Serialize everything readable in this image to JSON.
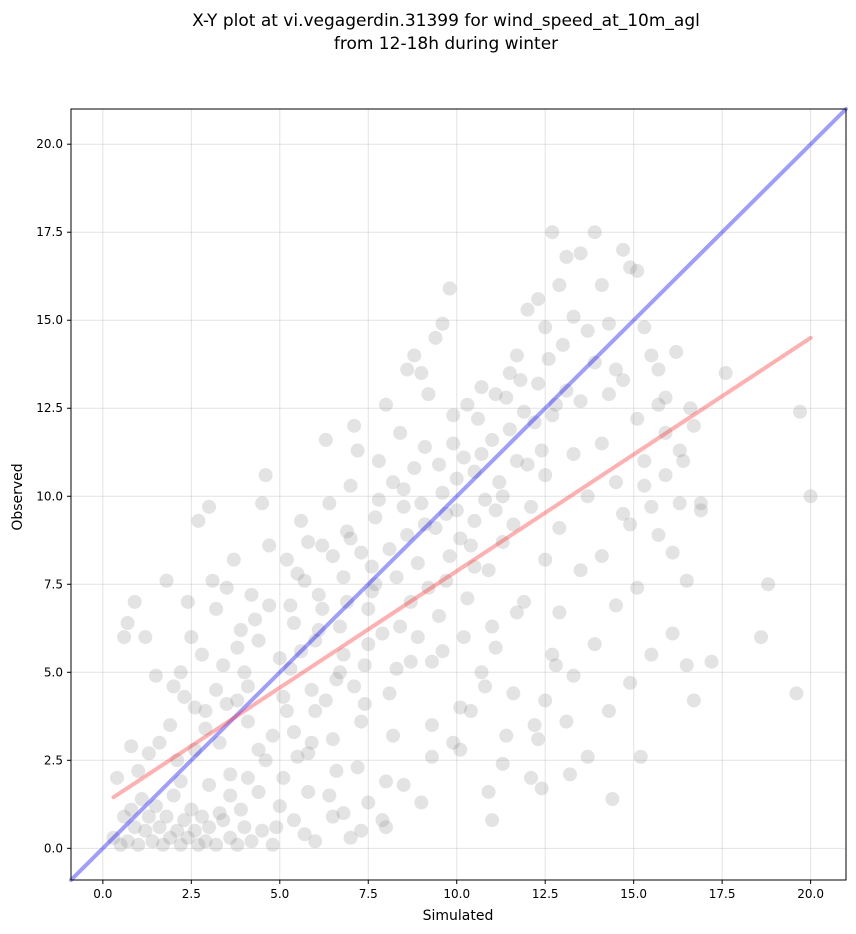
{
  "chart_data": {
    "type": "scatter",
    "title_lines": [
      "X-Y plot at vi.vegagerdin.31399 for wind_speed_at_10m_agl",
      "from 12-18h during winter"
    ],
    "xlabel": "Simulated",
    "ylabel": "Observed",
    "xlim": [
      -0.9,
      21.0
    ],
    "ylim": [
      -0.9,
      21.0
    ],
    "x_ticks": [
      0.0,
      2.5,
      5.0,
      7.5,
      10.0,
      12.5,
      15.0,
      17.5,
      20.0
    ],
    "x_tick_labels": [
      "0.0",
      "2.5",
      "5.0",
      "7.5",
      "10.0",
      "12.5",
      "15.0",
      "17.5",
      "20.0"
    ],
    "y_ticks": [
      0.0,
      2.5,
      5.0,
      7.5,
      10.0,
      12.5,
      15.0,
      17.5,
      20.0
    ],
    "y_tick_labels": [
      "0.0",
      "2.5",
      "5.0",
      "7.5",
      "10.0",
      "12.5",
      "15.0",
      "17.5",
      "20.0"
    ],
    "grid": true,
    "point_color": "#808080",
    "lines": [
      {
        "kind": "identity",
        "color": "#0000ff",
        "x": [
          -0.9,
          21.0
        ],
        "y": [
          -0.9,
          21.0
        ]
      },
      {
        "kind": "regression",
        "color": "#ff3333",
        "x": [
          0.3,
          20.0
        ],
        "y": [
          1.45,
          14.5
        ]
      }
    ],
    "points": [
      [
        0.3,
        0.3
      ],
      [
        0.5,
        0.1
      ],
      [
        0.6,
        0.9
      ],
      [
        0.7,
        0.2
      ],
      [
        0.8,
        1.1
      ],
      [
        0.9,
        0.6
      ],
      [
        1.0,
        0.1
      ],
      [
        1.1,
        1.4
      ],
      [
        1.2,
        0.5
      ],
      [
        1.3,
        0.9
      ],
      [
        1.4,
        0.2
      ],
      [
        1.5,
        1.2
      ],
      [
        1.6,
        0.6
      ],
      [
        1.7,
        0.1
      ],
      [
        1.8,
        0.9
      ],
      [
        1.9,
        0.3
      ],
      [
        2.0,
        1.5
      ],
      [
        2.1,
        0.5
      ],
      [
        2.2,
        0.1
      ],
      [
        2.3,
        0.8
      ],
      [
        2.4,
        0.3
      ],
      [
        2.5,
        1.1
      ],
      [
        2.6,
        0.5
      ],
      [
        2.7,
        0.1
      ],
      [
        2.8,
        0.9
      ],
      [
        2.9,
        0.2
      ],
      [
        3.0,
        0.6
      ],
      [
        3.2,
        0.1
      ],
      [
        3.4,
        0.8
      ],
      [
        3.6,
        0.3
      ],
      [
        3.8,
        0.1
      ],
      [
        4.0,
        0.6
      ],
      [
        4.2,
        0.2
      ],
      [
        4.5,
        0.5
      ],
      [
        4.8,
        0.1
      ],
      [
        0.4,
        2.0
      ],
      [
        0.6,
        6.0
      ],
      [
        0.7,
        6.4
      ],
      [
        0.8,
        2.9
      ],
      [
        0.9,
        7.0
      ],
      [
        1.0,
        2.2
      ],
      [
        1.2,
        6.0
      ],
      [
        1.3,
        2.7
      ],
      [
        1.5,
        4.9
      ],
      [
        1.6,
        3.0
      ],
      [
        1.8,
        7.6
      ],
      [
        1.9,
        3.5
      ],
      [
        2.0,
        4.6
      ],
      [
        2.1,
        2.5
      ],
      [
        2.2,
        5.0
      ],
      [
        2.3,
        4.3
      ],
      [
        2.4,
        7.0
      ],
      [
        2.5,
        6.0
      ],
      [
        2.6,
        4.0
      ],
      [
        2.7,
        9.3
      ],
      [
        2.8,
        5.5
      ],
      [
        2.9,
        3.4
      ],
      [
        3.0,
        9.7
      ],
      [
        3.1,
        7.6
      ],
      [
        3.2,
        6.8
      ],
      [
        3.3,
        3.0
      ],
      [
        3.4,
        5.2
      ],
      [
        3.5,
        7.4
      ],
      [
        3.6,
        2.1
      ],
      [
        3.7,
        8.2
      ],
      [
        3.8,
        4.2
      ],
      [
        3.9,
        6.2
      ],
      [
        4.0,
        5.0
      ],
      [
        4.1,
        3.6
      ],
      [
        4.2,
        7.2
      ],
      [
        4.3,
        6.5
      ],
      [
        4.4,
        2.8
      ],
      [
        4.5,
        9.8
      ],
      [
        4.6,
        10.6
      ],
      [
        4.7,
        8.6
      ],
      [
        3.0,
        1.8
      ],
      [
        3.3,
        1.0
      ],
      [
        3.6,
        1.5
      ],
      [
        3.9,
        1.1
      ],
      [
        4.1,
        2.0
      ],
      [
        4.4,
        1.6
      ],
      [
        4.6,
        2.5
      ],
      [
        4.8,
        3.2
      ],
      [
        4.9,
        0.6
      ],
      [
        5.0,
        1.2
      ],
      [
        5.1,
        2.0
      ],
      [
        5.2,
        3.9
      ],
      [
        5.3,
        5.1
      ],
      [
        5.4,
        6.4
      ],
      [
        5.5,
        7.8
      ],
      [
        5.6,
        9.3
      ],
      [
        5.7,
        0.4
      ],
      [
        5.8,
        2.7
      ],
      [
        5.9,
        4.5
      ],
      [
        6.0,
        5.9
      ],
      [
        6.1,
        7.2
      ],
      [
        6.2,
        8.6
      ],
      [
        6.3,
        11.6
      ],
      [
        6.4,
        1.5
      ],
      [
        6.5,
        3.1
      ],
      [
        6.6,
        4.8
      ],
      [
        6.7,
        6.3
      ],
      [
        6.8,
        7.7
      ],
      [
        6.9,
        9.0
      ],
      [
        7.0,
        10.3
      ],
      [
        7.1,
        12.0
      ],
      [
        7.2,
        2.3
      ],
      [
        7.3,
        3.6
      ],
      [
        7.4,
        5.2
      ],
      [
        7.5,
        6.8
      ],
      [
        7.6,
        8.0
      ],
      [
        7.7,
        9.4
      ],
      [
        7.8,
        11.0
      ],
      [
        7.9,
        0.8
      ],
      [
        5.2,
        8.2
      ],
      [
        5.4,
        3.3
      ],
      [
        5.6,
        5.6
      ],
      [
        5.8,
        8.7
      ],
      [
        6.0,
        3.9
      ],
      [
        6.2,
        6.8
      ],
      [
        6.4,
        9.8
      ],
      [
        6.6,
        2.2
      ],
      [
        6.8,
        5.5
      ],
      [
        7.0,
        8.8
      ],
      [
        7.2,
        11.3
      ],
      [
        7.4,
        4.1
      ],
      [
        7.6,
        7.3
      ],
      [
        7.8,
        9.9
      ],
      [
        8.0,
        12.6
      ],
      [
        8.2,
        3.2
      ],
      [
        8.4,
        6.3
      ],
      [
        8.6,
        8.9
      ],
      [
        8.8,
        10.8
      ],
      [
        9.0,
        13.5
      ],
      [
        8.0,
        1.9
      ],
      [
        8.1,
        4.4
      ],
      [
        8.3,
        7.7
      ],
      [
        8.5,
        10.2
      ],
      [
        8.7,
        5.3
      ],
      [
        8.9,
        8.1
      ],
      [
        9.1,
        11.4
      ],
      [
        9.3,
        2.6
      ],
      [
        9.5,
        6.6
      ],
      [
        9.7,
        9.5
      ],
      [
        9.9,
        12.3
      ],
      [
        10.1,
        4.0
      ],
      [
        10.3,
        7.1
      ],
      [
        10.5,
        10.7
      ],
      [
        10.7,
        13.1
      ],
      [
        10.9,
        1.6
      ],
      [
        11.1,
        5.7
      ],
      [
        11.3,
        8.7
      ],
      [
        11.5,
        11.9
      ],
      [
        11.7,
        14.0
      ],
      [
        9.2,
        7.4
      ],
      [
        9.4,
        9.1
      ],
      [
        9.6,
        10.1
      ],
      [
        9.8,
        8.3
      ],
      [
        10.0,
        9.6
      ],
      [
        10.2,
        11.1
      ],
      [
        10.4,
        8.6
      ],
      [
        10.6,
        12.2
      ],
      [
        10.8,
        9.9
      ],
      [
        11.0,
        11.6
      ],
      [
        11.2,
        10.4
      ],
      [
        11.4,
        12.8
      ],
      [
        11.6,
        9.2
      ],
      [
        11.8,
        13.3
      ],
      [
        12.0,
        10.9
      ],
      [
        12.2,
        12.1
      ],
      [
        12.4,
        11.3
      ],
      [
        12.6,
        13.9
      ],
      [
        12.8,
        12.6
      ],
      [
        13.0,
        14.3
      ],
      [
        8.2,
        10.4
      ],
      [
        8.4,
        11.8
      ],
      [
        8.6,
        13.6
      ],
      [
        8.8,
        14.0
      ],
      [
        9.0,
        9.8
      ],
      [
        9.2,
        12.9
      ],
      [
        9.4,
        14.5
      ],
      [
        9.6,
        14.9
      ],
      [
        9.8,
        15.9
      ],
      [
        10.0,
        10.5
      ],
      [
        12.0,
        15.3
      ],
      [
        12.3,
        15.6
      ],
      [
        12.5,
        14.8
      ],
      [
        12.7,
        17.5
      ],
      [
        12.9,
        16.0
      ],
      [
        13.1,
        16.8
      ],
      [
        13.3,
        15.1
      ],
      [
        13.5,
        16.9
      ],
      [
        13.7,
        14.7
      ],
      [
        13.9,
        17.5
      ],
      [
        14.1,
        16.0
      ],
      [
        14.3,
        14.9
      ],
      [
        14.5,
        13.6
      ],
      [
        14.7,
        17.0
      ],
      [
        14.9,
        16.5
      ],
      [
        15.1,
        16.4
      ],
      [
        15.3,
        14.8
      ],
      [
        15.5,
        14.0
      ],
      [
        15.7,
        13.6
      ],
      [
        15.9,
        12.8
      ],
      [
        12.1,
        2.0
      ],
      [
        12.3,
        3.1
      ],
      [
        12.5,
        4.2
      ],
      [
        12.7,
        5.5
      ],
      [
        12.9,
        6.7
      ],
      [
        13.1,
        3.6
      ],
      [
        13.3,
        4.9
      ],
      [
        13.5,
        7.9
      ],
      [
        13.7,
        2.6
      ],
      [
        13.9,
        5.8
      ],
      [
        14.1,
        8.3
      ],
      [
        14.3,
        3.9
      ],
      [
        14.5,
        6.9
      ],
      [
        14.7,
        9.5
      ],
      [
        14.9,
        4.7
      ],
      [
        15.1,
        7.4
      ],
      [
        15.3,
        10.3
      ],
      [
        15.5,
        5.5
      ],
      [
        15.7,
        8.9
      ],
      [
        15.9,
        11.8
      ],
      [
        16.1,
        6.1
      ],
      [
        16.3,
        9.8
      ],
      [
        16.5,
        7.6
      ],
      [
        16.7,
        4.2
      ],
      [
        16.9,
        9.6
      ],
      [
        17.2,
        5.3
      ],
      [
        17.6,
        13.5
      ],
      [
        18.6,
        6.0
      ],
      [
        18.8,
        7.5
      ],
      [
        19.6,
        4.4
      ],
      [
        19.7,
        12.4
      ],
      [
        20.0,
        10.0
      ],
      [
        16.2,
        14.1
      ],
      [
        16.4,
        11.0
      ],
      [
        16.6,
        12.5
      ],
      [
        15.2,
        2.6
      ],
      [
        14.4,
        1.4
      ],
      [
        13.2,
        2.1
      ],
      [
        12.4,
        1.7
      ],
      [
        11.0,
        0.8
      ],
      [
        10.1,
        2.8
      ],
      [
        10.4,
        3.9
      ],
      [
        10.7,
        5.0
      ],
      [
        11.0,
        6.3
      ],
      [
        11.3,
        2.4
      ],
      [
        11.6,
        4.4
      ],
      [
        11.9,
        7.0
      ],
      [
        12.2,
        3.5
      ],
      [
        12.5,
        8.2
      ],
      [
        12.8,
        5.2
      ],
      [
        9.0,
        1.3
      ],
      [
        9.3,
        3.5
      ],
      [
        9.6,
        5.6
      ],
      [
        9.9,
        3.0
      ],
      [
        10.2,
        6.0
      ],
      [
        10.5,
        8.0
      ],
      [
        10.8,
        4.6
      ],
      [
        11.1,
        9.6
      ],
      [
        11.4,
        3.2
      ],
      [
        11.7,
        6.7
      ],
      [
        5.1,
        4.3
      ],
      [
        5.3,
        6.9
      ],
      [
        5.5,
        2.6
      ],
      [
        5.7,
        7.6
      ],
      [
        5.9,
        3.0
      ],
      [
        6.1,
        6.2
      ],
      [
        6.3,
        4.2
      ],
      [
        6.5,
        8.3
      ],
      [
        6.7,
        5.0
      ],
      [
        6.9,
        7.0
      ],
      [
        7.1,
        4.6
      ],
      [
        7.3,
        8.4
      ],
      [
        7.5,
        5.8
      ],
      [
        7.7,
        7.5
      ],
      [
        7.9,
        6.1
      ],
      [
        8.1,
        8.5
      ],
      [
        8.3,
        5.1
      ],
      [
        8.5,
        9.7
      ],
      [
        8.7,
        7.0
      ],
      [
        8.9,
        6.0
      ],
      [
        9.1,
        9.2
      ],
      [
        9.3,
        5.3
      ],
      [
        9.5,
        10.9
      ],
      [
        9.7,
        7.6
      ],
      [
        9.9,
        11.5
      ],
      [
        10.1,
        8.8
      ],
      [
        10.3,
        12.6
      ],
      [
        10.5,
        9.3
      ],
      [
        10.7,
        11.2
      ],
      [
        10.9,
        7.9
      ],
      [
        11.1,
        12.9
      ],
      [
        11.3,
        10.0
      ],
      [
        11.5,
        13.5
      ],
      [
        11.7,
        11.0
      ],
      [
        11.9,
        12.4
      ],
      [
        12.1,
        9.7
      ],
      [
        12.3,
        13.2
      ],
      [
        12.5,
        10.6
      ],
      [
        12.7,
        12.3
      ],
      [
        12.9,
        9.1
      ],
      [
        13.1,
        13.0
      ],
      [
        13.3,
        11.2
      ],
      [
        13.5,
        12.7
      ],
      [
        13.7,
        10.0
      ],
      [
        13.9,
        13.8
      ],
      [
        14.1,
        11.5
      ],
      [
        14.3,
        12.9
      ],
      [
        14.5,
        10.4
      ],
      [
        14.7,
        13.3
      ],
      [
        14.9,
        9.2
      ],
      [
        15.1,
        12.2
      ],
      [
        15.3,
        11.0
      ],
      [
        15.5,
        9.7
      ],
      [
        15.7,
        12.6
      ],
      [
        15.9,
        10.6
      ],
      [
        16.1,
        8.4
      ],
      [
        16.3,
        11.3
      ],
      [
        16.5,
        5.2
      ],
      [
        16.7,
        12.0
      ],
      [
        16.9,
        9.8
      ],
      [
        2.2,
        1.9
      ],
      [
        2.6,
        2.8
      ],
      [
        2.9,
        3.9
      ],
      [
        3.2,
        4.5
      ],
      [
        3.5,
        4.1
      ],
      [
        3.8,
        5.7
      ],
      [
        4.1,
        4.6
      ],
      [
        4.4,
        5.9
      ],
      [
        4.7,
        6.9
      ],
      [
        5.0,
        5.4
      ],
      [
        6.0,
        0.2
      ],
      [
        6.5,
        0.9
      ],
      [
        7.0,
        0.3
      ],
      [
        7.5,
        1.3
      ],
      [
        8.0,
        0.6
      ],
      [
        8.5,
        1.8
      ],
      [
        6.8,
        1.0
      ],
      [
        7.3,
        0.5
      ],
      [
        5.4,
        0.8
      ],
      [
        5.8,
        1.6
      ]
    ]
  }
}
